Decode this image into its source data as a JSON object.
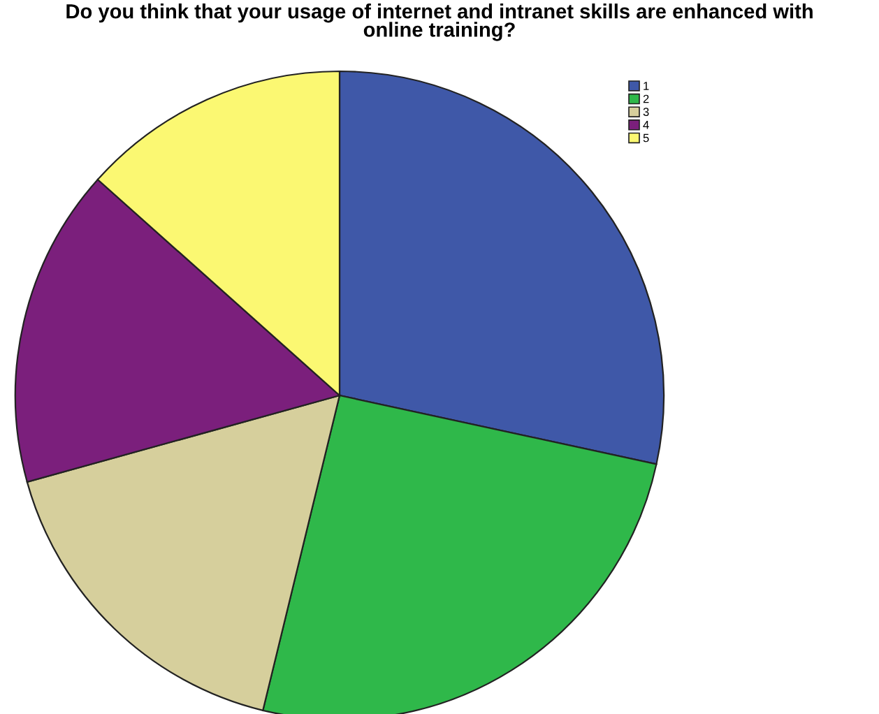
{
  "chart_data": {
    "type": "pie",
    "title": "Do you think that your usage of internet and intranet skills are enhanced with\nonline training?",
    "categories": [
      "1",
      "2",
      "3",
      "4",
      "5"
    ],
    "values": [
      28.4,
      25.4,
      16.9,
      15.9,
      13.4
    ],
    "colors": [
      "#3f58a8",
      "#2fb84a",
      "#d6cf9c",
      "#7b1f7c",
      "#fbf872"
    ],
    "legend": "top right"
  }
}
